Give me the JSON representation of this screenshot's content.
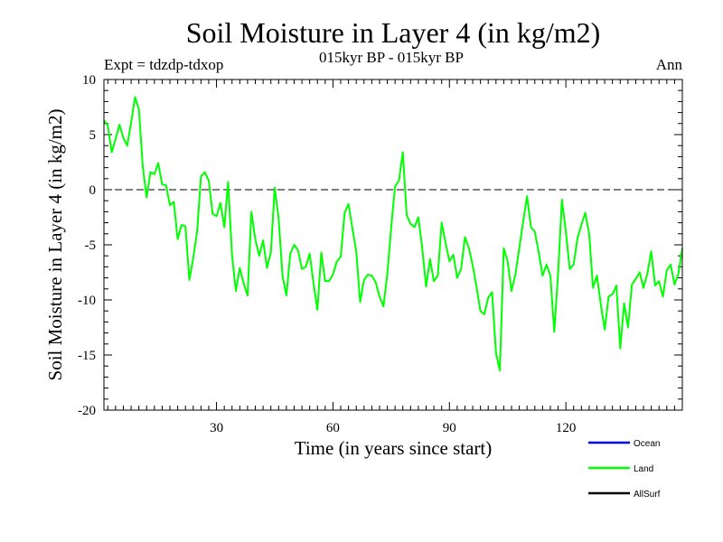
{
  "chart_data": {
    "type": "line",
    "title": "Soil Moisture in Layer 4 (in kg/m2)",
    "subtitle": "015kyr BP - 015kyr BP",
    "experiment_label": "Expt = tdzdp-tdxop",
    "period_label": "Ann",
    "xlabel": "Time (in years since start)",
    "ylabel": "Soil Moisture in Layer 4 (in kg/m2)",
    "xlim": [
      1,
      150
    ],
    "ylim": [
      -20,
      10
    ],
    "x_ticks": [
      30,
      60,
      90,
      120
    ],
    "y_ticks": [
      10,
      5,
      0,
      -5,
      -10,
      -15,
      -20
    ],
    "reference_line": 0,
    "legend": [
      {
        "name": "Ocean",
        "color": "#0000ff"
      },
      {
        "name": "Land",
        "color": "#00ff00"
      },
      {
        "name": "AllSurf",
        "color": "#000000"
      }
    ],
    "series": [
      {
        "name": "Land",
        "color": "#00ff00",
        "x_start": 1,
        "x_step": 1,
        "values": [
          6.3,
          5.8,
          3.4,
          4.6,
          5.9,
          4.7,
          4.0,
          6.1,
          8.4,
          7.3,
          2.1,
          -0.7,
          1.6,
          1.4,
          2.4,
          0.5,
          0.4,
          -1.4,
          -1.1,
          -4.5,
          -3.2,
          -3.3,
          -8.2,
          -6.2,
          -3.8,
          1.2,
          1.6,
          0.8,
          -2.2,
          -2.4,
          -1.2,
          -3.4,
          0.7,
          -5.9,
          -9.2,
          -7.1,
          -8.5,
          -9.6,
          -2.0,
          -4.5,
          -6.0,
          -4.6,
          -7.1,
          -5.7,
          0.2,
          -2.6,
          -7.8,
          -9.6,
          -5.8,
          -5.0,
          -5.5,
          -7.2,
          -7.0,
          -5.8,
          -8.5,
          -10.9,
          -5.7,
          -8.3,
          -8.3,
          -7.7,
          -6.5,
          -6.1,
          -2.1,
          -1.3,
          -3.5,
          -5.6,
          -10.2,
          -8.2,
          -7.7,
          -7.8,
          -8.4,
          -9.7,
          -10.6,
          -7.6,
          -3.4,
          0.3,
          0.8,
          3.4,
          -2.3,
          -3.1,
          -3.4,
          -2.5,
          -5.3,
          -8.8,
          -6.3,
          -8.3,
          -7.8,
          -3.0,
          -4.8,
          -6.5,
          -5.9,
          -8.0,
          -7.2,
          -4.3,
          -5.3,
          -6.9,
          -8.8,
          -11.0,
          -11.3,
          -9.8,
          -9.3,
          -14.8,
          -16.4,
          -5.3,
          -6.5,
          -9.2,
          -7.7,
          -5.3,
          -2.9,
          -0.6,
          -3.4,
          -3.8,
          -5.7,
          -7.8,
          -6.8,
          -7.8,
          -12.9,
          -7.5,
          -0.9,
          -3.8,
          -7.2,
          -6.8,
          -4.4,
          -3.2,
          -2.1,
          -4.0,
          -8.9,
          -7.8,
          -10.4,
          -12.7,
          -9.7,
          -9.5,
          -8.7,
          -14.4,
          -10.3,
          -12.5,
          -8.6,
          -8.1,
          -7.5,
          -8.9,
          -7.6,
          -5.6,
          -8.7,
          -8.3,
          -9.7,
          -7.3,
          -6.8,
          -8.6,
          -7.6,
          -5.3
        ]
      }
    ]
  }
}
